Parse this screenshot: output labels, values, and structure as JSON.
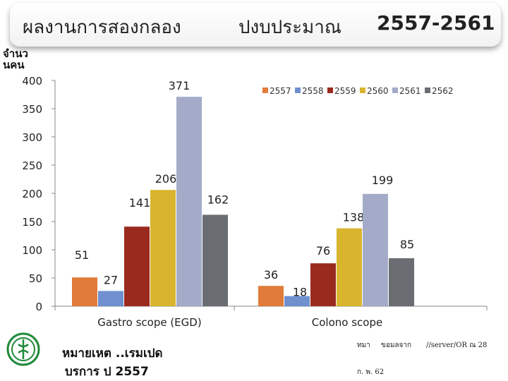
{
  "header": {
    "title_left": "ผลงานการสองกลอง",
    "title_mid": "ปงบประมาณ",
    "title_right": "2557-2561"
  },
  "chart_data": {
    "type": "bar",
    "ylabel": "จำนวนคน",
    "xlabel": "",
    "ylim": [
      0,
      400
    ],
    "yticks": [
      0,
      50,
      100,
      150,
      200,
      250,
      300,
      350,
      400
    ],
    "categories": [
      "Gastro scope (EGD)",
      "Colono scope"
    ],
    "series": [
      {
        "name": "2557",
        "values": [
          51,
          36
        ],
        "color": "#e07b39"
      },
      {
        "name": "2558",
        "values": [
          27,
          18
        ],
        "color": "#6f8fcf"
      },
      {
        "name": "2559",
        "values": [
          141,
          76
        ],
        "color": "#9b2a1e"
      },
      {
        "name": "2560",
        "values": [
          206,
          138
        ],
        "color": "#d9b42e"
      },
      {
        "name": "2561",
        "values": [
          371,
          199
        ],
        "color": "#a3abc8"
      },
      {
        "name": "2562",
        "values": [
          162,
          85
        ],
        "color": "#6a6d72"
      }
    ],
    "grid": false,
    "legend_position": "top-right"
  },
  "footer": {
    "note_line1": "หมายเหต ..เรมเปด",
    "note_line2": "บรการ ป 2557",
    "source_a": "ทมา",
    "source_b": "ขอมลจาก",
    "source_c": "//server/OR ณ 28",
    "source_d": "ก. พ. 62"
  }
}
